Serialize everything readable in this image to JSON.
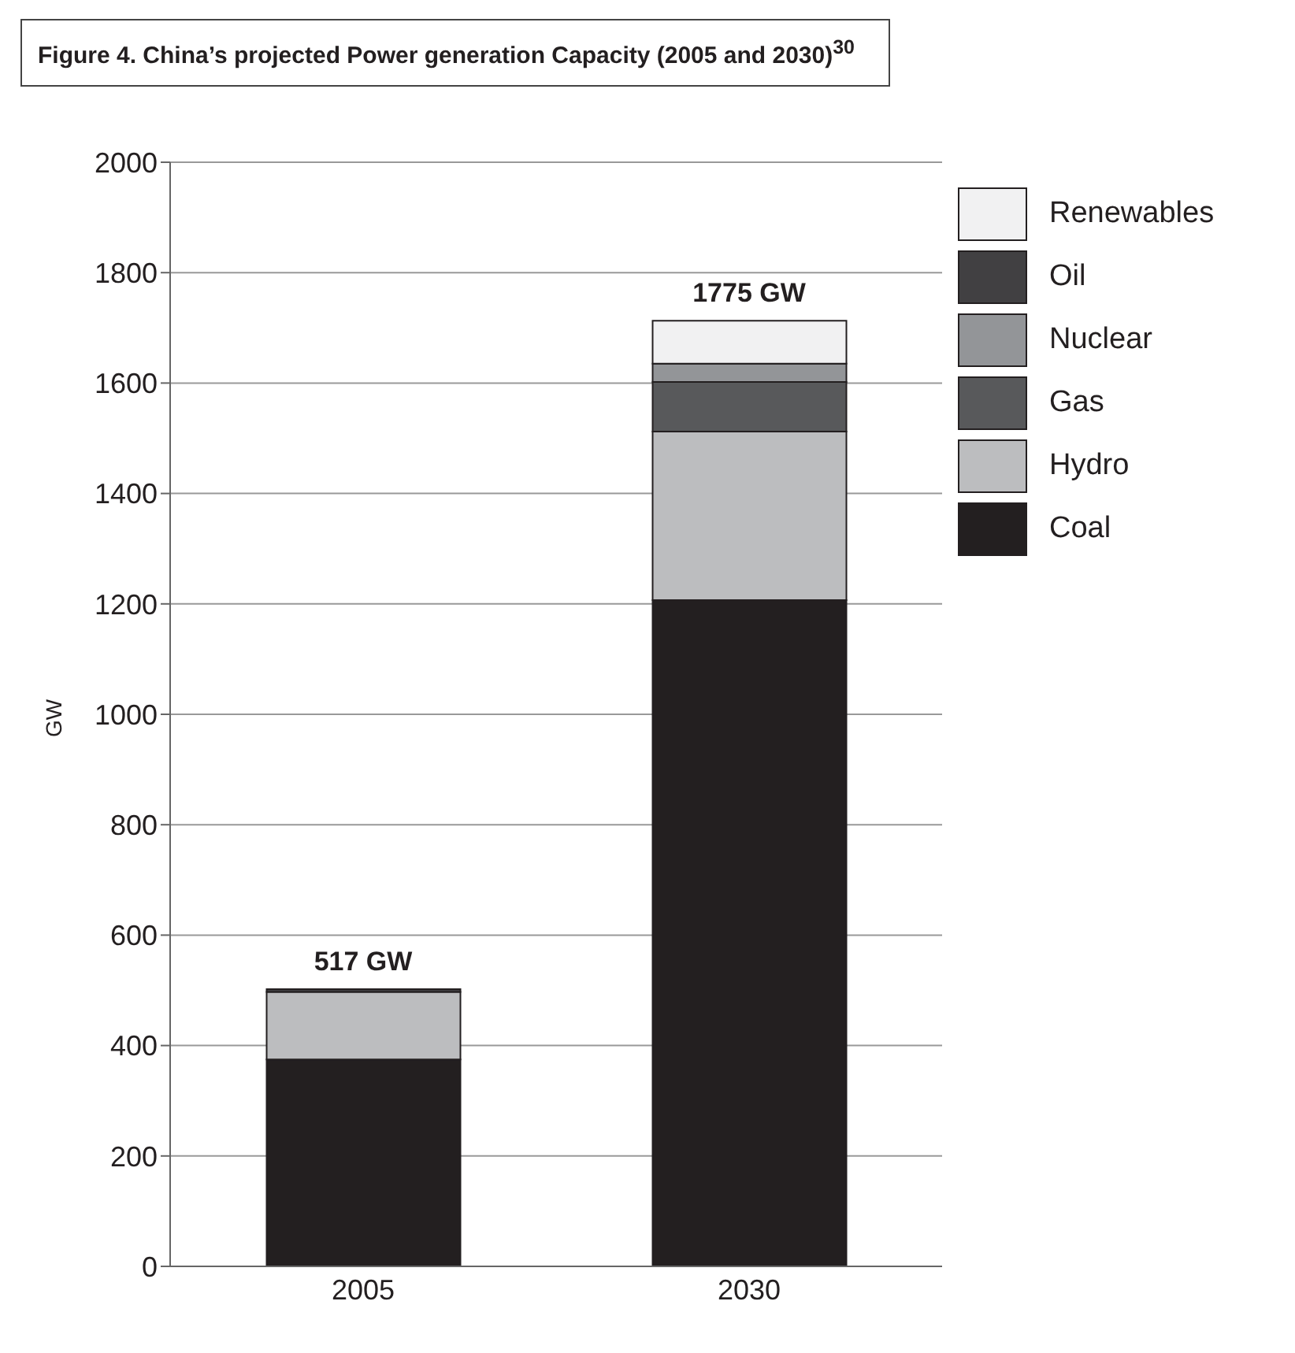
{
  "chart_data": {
    "type": "bar",
    "title": "Figure 4. China’s projected Power generation Capacity (2005 and 2030)$^{30}$",
    "ylabel": "GW",
    "categories": [
      "2005",
      "2030"
    ],
    "stacked": true,
    "series": [
      {
        "name": "Coal",
        "color": "#231f20",
        "values": [
          375,
          1207
        ]
      },
      {
        "name": "Hydro",
        "color": "#bcbdbf",
        "values": [
          122,
          305
        ]
      },
      {
        "name": "Gas",
        "color": "#58595b",
        "values": [
          0,
          90
        ]
      },
      {
        "name": "Nuclear",
        "color": "#939598",
        "values": [
          0,
          33
        ]
      },
      {
        "name": "Oil",
        "color": "#414042",
        "values": [
          5,
          0
        ]
      },
      {
        "name": "Renewables",
        "color": "#f1f1f2",
        "values": [
          0,
          78
        ]
      }
    ],
    "annotations": [
      {
        "text": "517 GW",
        "x": "2005",
        "y": 502
      },
      {
        "text": "1775 GW",
        "x": "2030",
        "y": 1713
      }
    ],
    "ylim": [
      0,
      2000
    ],
    "yticks": [
      0,
      200,
      400,
      600,
      800,
      1000,
      1200,
      1400,
      1600,
      1800,
      2000
    ],
    "grid": "y",
    "legend": "top right"
  }
}
